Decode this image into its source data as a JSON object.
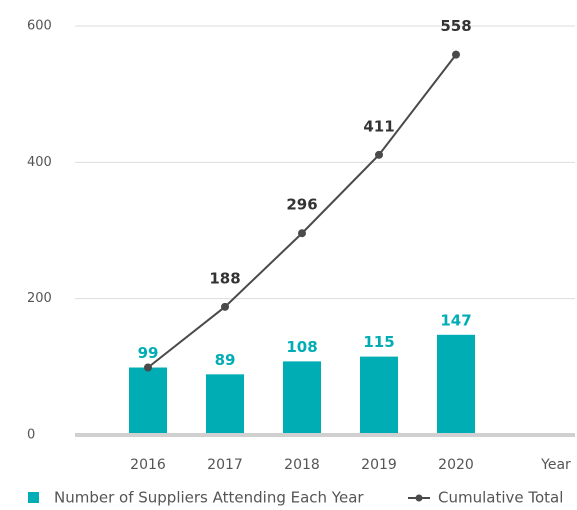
{
  "chart_data": {
    "type": "bar_line",
    "categories": [
      "2016",
      "2017",
      "2018",
      "2019",
      "2020"
    ],
    "xlabel": "Year",
    "series": [
      {
        "name": "Number of Suppliers Attending Each Year",
        "type": "bar",
        "color": "#00adb5",
        "values": [
          99,
          89,
          108,
          115,
          147
        ]
      },
      {
        "name": "Cumulative Total",
        "type": "line",
        "color": "#4a4a4a",
        "values": [
          99,
          188,
          296,
          411,
          558
        ]
      }
    ],
    "ylim": [
      0,
      600
    ],
    "yticks": [
      0,
      200,
      400,
      600
    ],
    "grid": true,
    "legend": "bottom"
  }
}
